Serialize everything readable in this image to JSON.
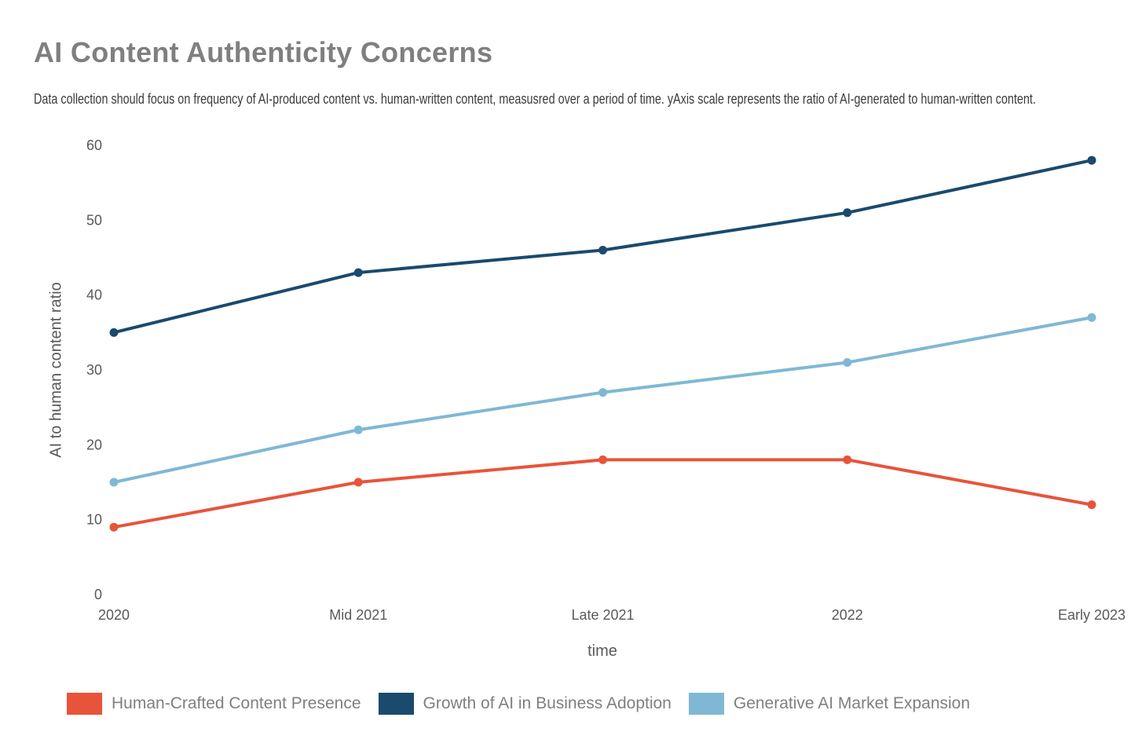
{
  "chart_data": {
    "type": "line",
    "title": "AI Content Authenticity Concerns",
    "subtitle": "Data collection should focus on frequency of AI-produced content vs. human-written content, measusred over a period of time. yAxis scale represents the ratio of AI-generated to human-written content.",
    "xlabel": "time",
    "ylabel": "AI to human content ratio",
    "categories": [
      "2020",
      "Mid 2021",
      "Late 2021",
      "2022",
      "Early 2023"
    ],
    "y_ticks": [
      0,
      10,
      20,
      30,
      40,
      50,
      60
    ],
    "ylim": [
      0,
      60
    ],
    "grid": false,
    "legend_position": "bottom",
    "series": [
      {
        "name": "Human-Crafted Content Presence",
        "color": "#E8543A",
        "values": [
          9,
          15,
          18,
          18,
          12
        ]
      },
      {
        "name": "Growth of AI in Business Adoption",
        "color": "#1A4A6E",
        "values": [
          35,
          43,
          46,
          51,
          58
        ]
      },
      {
        "name": "Generative AI Market Expansion",
        "color": "#7FB8D4",
        "values": [
          15,
          22,
          27,
          31,
          37
        ]
      }
    ]
  }
}
